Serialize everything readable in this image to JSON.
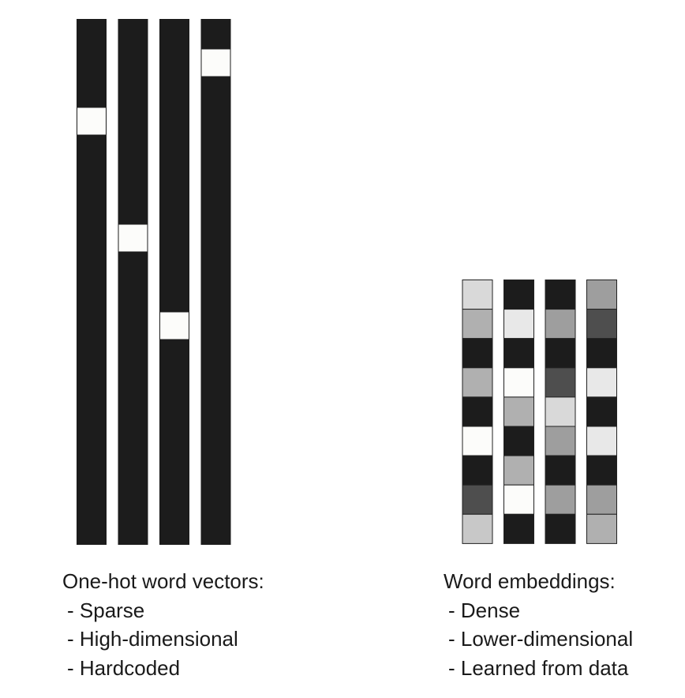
{
  "one_hot": {
    "caption_title": "One-hot word vectors:",
    "properties": [
      "Sparse",
      "High-dimensional",
      "Hardcoded"
    ],
    "vector_count": 4,
    "dimension": 18,
    "hot_index": [
      3,
      7,
      10,
      1
    ],
    "on_color": "#fcfcfa",
    "off_color": "#1c1c1c"
  },
  "embeddings": {
    "caption_title": "Word embeddings:",
    "properties": [
      "Dense",
      "Lower-dimensional",
      "Learned from data"
    ],
    "dimension": 9,
    "cell_colors": [
      [
        "#d9d9d9",
        "#1c1c1c",
        "#1c1c1c",
        "#9e9e9e"
      ],
      [
        "#b0b0b0",
        "#e8e8e8",
        "#9e9e9e",
        "#4e4e4e"
      ],
      [
        "#1c1c1c",
        "#1c1c1c",
        "#1c1c1c",
        "#1c1c1c"
      ],
      [
        "#b0b0b0",
        "#fcfcfa",
        "#4e4e4e",
        "#e8e8e8"
      ],
      [
        "#1c1c1c",
        "#b0b0b0",
        "#d9d9d9",
        "#1c1c1c"
      ],
      [
        "#fcfcfa",
        "#1c1c1c",
        "#9e9e9e",
        "#e8e8e8"
      ],
      [
        "#1c1c1c",
        "#b0b0b0",
        "#1c1c1c",
        "#1c1c1c"
      ],
      [
        "#4e4e4e",
        "#fcfcfa",
        "#9e9e9e",
        "#9e9e9e"
      ],
      [
        "#c8c8c8",
        "#1c1c1c",
        "#1c1c1c",
        "#b0b0b0"
      ]
    ],
    "border_color": "#222222"
  }
}
